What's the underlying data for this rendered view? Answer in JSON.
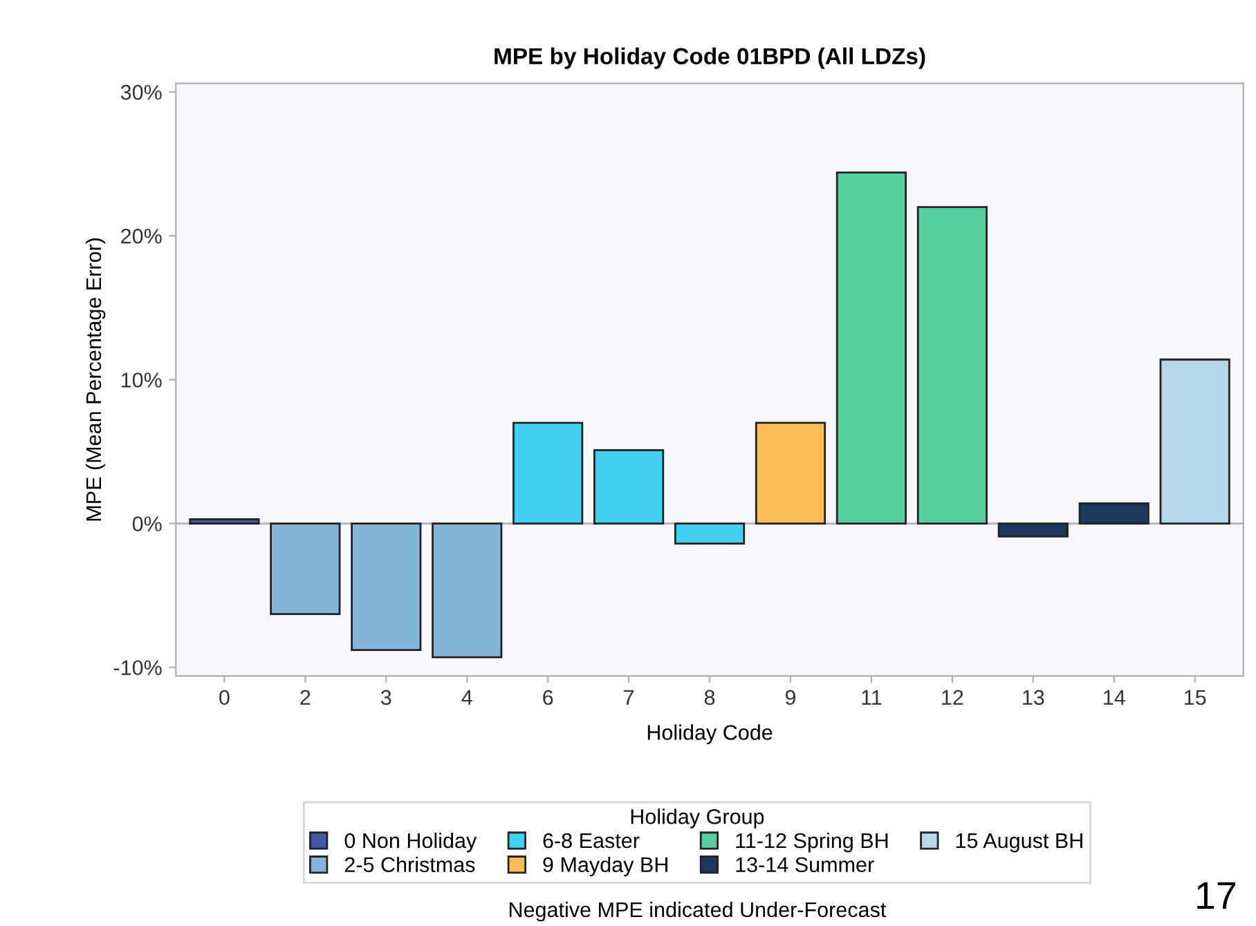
{
  "chart_data": {
    "type": "bar",
    "title": "MPE by Holiday Code 01BPD (All LDZs)",
    "xlabel": "Holiday Code",
    "ylabel": "MPE (Mean Percentage Error)",
    "legend_title": "Holiday Group",
    "categories": [
      "0",
      "2",
      "3",
      "4",
      "6",
      "7",
      "8",
      "9",
      "11",
      "12",
      "13",
      "14",
      "15"
    ],
    "series": [
      {
        "name": "0 Non Holiday",
        "color": "#3f5aa8",
        "values": [
          0.3,
          null,
          null,
          null,
          null,
          null,
          null,
          null,
          null,
          null,
          null,
          null,
          null
        ]
      },
      {
        "name": "2-5 Christmas",
        "color": "#84b6d9",
        "values": [
          null,
          -6.3,
          -8.8,
          -9.3,
          null,
          null,
          null,
          null,
          null,
          null,
          null,
          null,
          null
        ]
      },
      {
        "name": "6-8 Easter",
        "color": "#41d1f2",
        "values": [
          null,
          null,
          null,
          null,
          7.0,
          5.1,
          -1.4,
          null,
          null,
          null,
          null,
          null,
          null
        ]
      },
      {
        "name": "9 Mayday BH",
        "color": "#fbbb55",
        "values": [
          null,
          null,
          null,
          null,
          null,
          null,
          null,
          7.0,
          null,
          null,
          null,
          null,
          null
        ]
      },
      {
        "name": "11-12 Spring BH",
        "color": "#55cf9c",
        "values": [
          null,
          null,
          null,
          null,
          null,
          null,
          null,
          null,
          24.4,
          22.0,
          null,
          null,
          null
        ]
      },
      {
        "name": "13-14 Summer",
        "color": "#1c3a5e",
        "values": [
          null,
          null,
          null,
          null,
          null,
          null,
          null,
          null,
          null,
          null,
          -0.9,
          1.4,
          null
        ]
      },
      {
        "name": "15 August BH",
        "color": "#b2d7e7",
        "values": [
          null,
          null,
          null,
          null,
          null,
          null,
          null,
          null,
          null,
          null,
          null,
          null,
          11.4
        ]
      }
    ],
    "ylim": [
      -10.6,
      30.6
    ],
    "yticks": [
      {
        "value": -10,
        "label": "-10%"
      },
      {
        "value": 0,
        "label": "0%"
      },
      {
        "value": 10,
        "label": "10%"
      },
      {
        "value": 20,
        "label": "20%"
      },
      {
        "value": 30,
        "label": "30%"
      }
    ],
    "ref_lines": [
      {
        "axis": "y",
        "value": 0,
        "color": "#bbbbbb"
      }
    ],
    "grid": false,
    "legend": "bottom",
    "annotations": [
      "Negative MPE indicated Under-Forecast",
      "17"
    ]
  }
}
